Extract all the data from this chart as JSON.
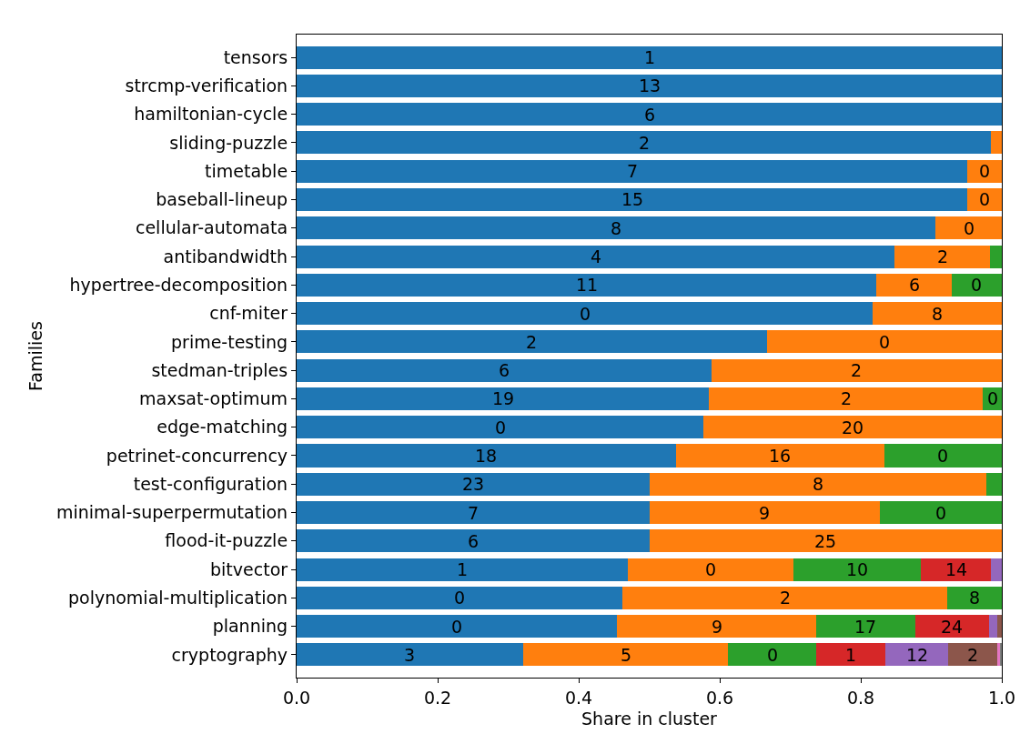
{
  "chart_data": {
    "type": "bar",
    "orientation": "horizontal",
    "stacked": true,
    "xlabel": "Share in cluster",
    "ylabel": "Families",
    "categories": [
      "tensors",
      "strcmp-verification",
      "hamiltonian-cycle",
      "sliding-puzzle",
      "timetable",
      "baseball-lineup",
      "cellular-automata",
      "antibandwidth",
      "hypertree-decomposition",
      "cnf-miter",
      "prime-testing",
      "stedman-triples",
      "maxsat-optimum",
      "edge-matching",
      "petrinet-concurrency",
      "test-configuration",
      "minimal-superpermutation",
      "flood-it-puzzle",
      "bitvector",
      "polynomial-multiplication",
      "planning",
      "cryptography"
    ],
    "series": [
      {
        "color": "#1f77b4",
        "values": [
          1,
          1,
          1,
          0.985,
          0.951,
          0.951,
          0.906,
          0.848,
          0.822,
          0.817,
          0.667,
          0.588,
          0.585,
          0.577,
          0.538,
          0.5,
          0.5,
          0.5,
          0.47,
          0.462,
          0.454,
          0.321
        ]
      },
      {
        "color": "#ff7f0e",
        "values": [
          null,
          null,
          null,
          0.015,
          0.049,
          0.049,
          0.094,
          0.135,
          0.107,
          0.183,
          0.333,
          0.412,
          0.388,
          0.423,
          0.295,
          0.478,
          0.327,
          0.5,
          0.235,
          0.461,
          0.283,
          0.291
        ]
      },
      {
        "color": "#2ca02c",
        "values": [
          null,
          null,
          null,
          null,
          null,
          null,
          null,
          0.017,
          0.071,
          null,
          null,
          null,
          0.027,
          null,
          0.167,
          0.022,
          0.173,
          null,
          0.18,
          0.077,
          0.14,
          0.125
        ]
      },
      {
        "color": "#d62728",
        "values": [
          null,
          null,
          null,
          null,
          null,
          null,
          null,
          null,
          null,
          null,
          null,
          null,
          null,
          null,
          null,
          null,
          null,
          null,
          0.1,
          null,
          0.105,
          0.098
        ]
      },
      {
        "color": "#9467bd",
        "values": [
          null,
          null,
          null,
          null,
          null,
          null,
          null,
          null,
          null,
          null,
          null,
          null,
          null,
          null,
          null,
          null,
          null,
          null,
          0.015,
          null,
          0.012,
          0.089
        ]
      },
      {
        "color": "#8c564b",
        "values": [
          null,
          null,
          null,
          null,
          null,
          null,
          null,
          null,
          null,
          null,
          null,
          null,
          null,
          null,
          null,
          null,
          null,
          null,
          null,
          null,
          0.006,
          0.07
        ]
      },
      {
        "color": "#e377c2",
        "values": [
          null,
          null,
          null,
          null,
          null,
          null,
          null,
          null,
          null,
          null,
          null,
          null,
          null,
          null,
          null,
          null,
          null,
          null,
          null,
          null,
          null,
          0.003
        ]
      },
      {
        "color": "#7f7f7f",
        "values": [
          null,
          null,
          null,
          null,
          null,
          null,
          null,
          null,
          null,
          null,
          null,
          null,
          null,
          null,
          null,
          null,
          null,
          null,
          null,
          null,
          null,
          0.003
        ]
      }
    ],
    "annotations": [
      {
        "text": "1",
        "x": 0.5,
        "y": "tensors"
      },
      {
        "text": "13",
        "x": 0.5,
        "y": "strcmp-verification"
      },
      {
        "text": "6",
        "x": 0.5,
        "y": "hamiltonian-cycle"
      },
      {
        "text": "2",
        "x": 0.4925,
        "y": "sliding-puzzle"
      },
      {
        "text": "7",
        "x": 0.4755,
        "y": "timetable"
      },
      {
        "text": "0",
        "x": 0.9755,
        "y": "timetable"
      },
      {
        "text": "15",
        "x": 0.4755,
        "y": "baseball-lineup"
      },
      {
        "text": "0",
        "x": 0.9755,
        "y": "baseball-lineup"
      },
      {
        "text": "8",
        "x": 0.453,
        "y": "cellular-automata"
      },
      {
        "text": "0",
        "x": 0.953,
        "y": "cellular-automata"
      },
      {
        "text": "4",
        "x": 0.424,
        "y": "antibandwidth"
      },
      {
        "text": "2",
        "x": 0.9155,
        "y": "antibandwidth"
      },
      {
        "text": "11",
        "x": 0.411,
        "y": "hypertree-decomposition"
      },
      {
        "text": "6",
        "x": 0.8755,
        "y": "hypertree-decomposition"
      },
      {
        "text": "0",
        "x": 0.9645,
        "y": "hypertree-decomposition"
      },
      {
        "text": "0",
        "x": 0.4085,
        "y": "cnf-miter"
      },
      {
        "text": "8",
        "x": 0.9085,
        "y": "cnf-miter"
      },
      {
        "text": "2",
        "x": 0.3335,
        "y": "prime-testing"
      },
      {
        "text": "0",
        "x": 0.8335,
        "y": "prime-testing"
      },
      {
        "text": "6",
        "x": 0.294,
        "y": "stedman-triples"
      },
      {
        "text": "2",
        "x": 0.794,
        "y": "stedman-triples"
      },
      {
        "text": "19",
        "x": 0.2925,
        "y": "maxsat-optimum"
      },
      {
        "text": "2",
        "x": 0.779,
        "y": "maxsat-optimum"
      },
      {
        "text": "0",
        "x": 0.9865,
        "y": "maxsat-optimum"
      },
      {
        "text": "0",
        "x": 0.2885,
        "y": "edge-matching"
      },
      {
        "text": "20",
        "x": 0.7885,
        "y": "edge-matching"
      },
      {
        "text": "18",
        "x": 0.269,
        "y": "petrinet-concurrency"
      },
      {
        "text": "16",
        "x": 0.6855,
        "y": "petrinet-concurrency"
      },
      {
        "text": "0",
        "x": 0.9165,
        "y": "petrinet-concurrency"
      },
      {
        "text": "23",
        "x": 0.25,
        "y": "test-configuration"
      },
      {
        "text": "8",
        "x": 0.739,
        "y": "test-configuration"
      },
      {
        "text": "7",
        "x": 0.25,
        "y": "minimal-superpermutation"
      },
      {
        "text": "9",
        "x": 0.6635,
        "y": "minimal-superpermutation"
      },
      {
        "text": "0",
        "x": 0.9135,
        "y": "minimal-superpermutation"
      },
      {
        "text": "6",
        "x": 0.25,
        "y": "flood-it-puzzle"
      },
      {
        "text": "25",
        "x": 0.75,
        "y": "flood-it-puzzle"
      },
      {
        "text": "1",
        "x": 0.235,
        "y": "bitvector"
      },
      {
        "text": "0",
        "x": 0.5875,
        "y": "bitvector"
      },
      {
        "text": "10",
        "x": 0.795,
        "y": "bitvector"
      },
      {
        "text": "14",
        "x": 0.935,
        "y": "bitvector"
      },
      {
        "text": "0",
        "x": 0.231,
        "y": "polynomial-multiplication"
      },
      {
        "text": "2",
        "x": 0.6925,
        "y": "polynomial-multiplication"
      },
      {
        "text": "8",
        "x": 0.9615,
        "y": "polynomial-multiplication"
      },
      {
        "text": "0",
        "x": 0.227,
        "y": "planning"
      },
      {
        "text": "9",
        "x": 0.5955,
        "y": "planning"
      },
      {
        "text": "17",
        "x": 0.807,
        "y": "planning"
      },
      {
        "text": "24",
        "x": 0.9295,
        "y": "planning"
      },
      {
        "text": "3",
        "x": 0.1605,
        "y": "cryptography"
      },
      {
        "text": "5",
        "x": 0.4665,
        "y": "cryptography"
      },
      {
        "text": "0",
        "x": 0.6745,
        "y": "cryptography"
      },
      {
        "text": "1",
        "x": 0.786,
        "y": "cryptography"
      },
      {
        "text": "12",
        "x": 0.8795,
        "y": "cryptography"
      },
      {
        "text": "2",
        "x": 0.959,
        "y": "cryptography"
      }
    ],
    "xlim": [
      0,
      1
    ],
    "xticks": [
      {
        "value": 0,
        "label": "0.0"
      },
      {
        "value": 0.2,
        "label": "0.2"
      },
      {
        "value": 0.4,
        "label": "0.4"
      },
      {
        "value": 0.6,
        "label": "0.6"
      },
      {
        "value": 0.8,
        "label": "0.8"
      },
      {
        "value": 1,
        "label": "1.0"
      }
    ],
    "grid": false
  }
}
